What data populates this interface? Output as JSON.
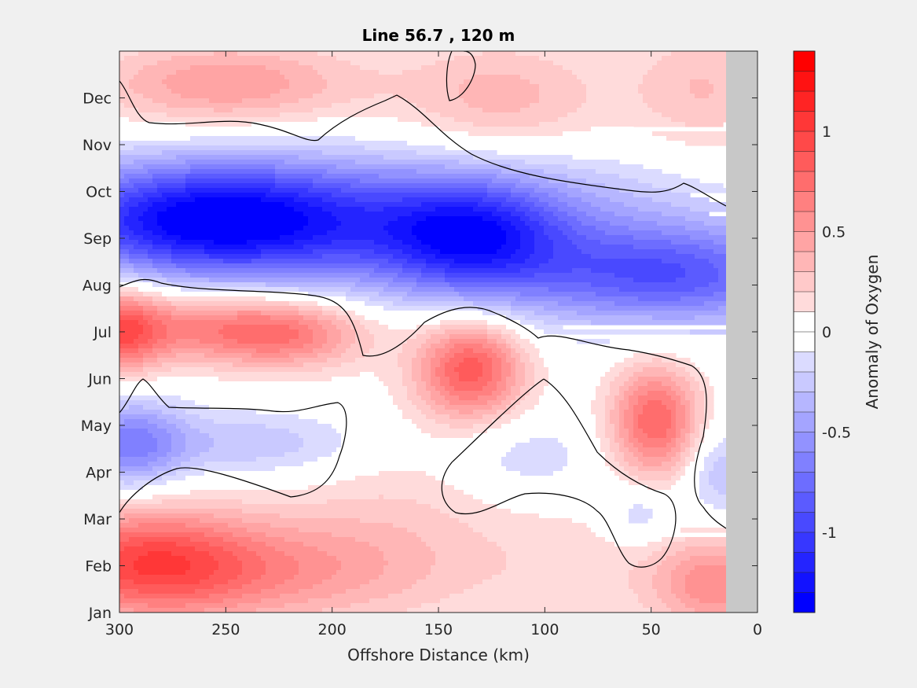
{
  "chart_data": {
    "type": "heatmap",
    "subtype": "filled-contour",
    "title": "Line 56.7 , 120 m",
    "xlabel": "Offshore Distance (km)",
    "ylabel": "",
    "x_axis_reversed": true,
    "xlim": [
      300,
      0
    ],
    "x_ticks": [
      300,
      250,
      200,
      150,
      100,
      50,
      0
    ],
    "y_ticks": [
      "Jan",
      "Feb",
      "Mar",
      "Apr",
      "May",
      "Jun",
      "Jul",
      "Aug",
      "Sep",
      "Oct",
      "Nov",
      "Dec"
    ],
    "y_range_months": [
      1,
      13
    ],
    "colorbar": {
      "label": "Anomaly of Oxygen",
      "range": [
        -1.4,
        1.4
      ],
      "levels": 28,
      "step": 0.1,
      "ticks": [
        1,
        0.5,
        0,
        -0.5,
        -1
      ],
      "tick_labels": [
        "1",
        "0.5",
        "0",
        "-0.5",
        "-1"
      ],
      "low_color": "#0000ff",
      "mid_color": "#ffffff",
      "high_color": "#ff0000"
    },
    "no_data_region": {
      "x_from_km": 15,
      "x_to_km": 0,
      "color": "#c8c8c8"
    },
    "zero_contour_color": "#000000",
    "features": [
      {
        "name": "strong negative anomaly",
        "x_km": 258,
        "month": "Sep-Oct",
        "value": -1.3
      },
      {
        "name": "negative anomaly",
        "x_km": 135,
        "month": "Sep",
        "value": -0.8
      },
      {
        "name": "negative anomaly",
        "x_km": 42,
        "month": "Aug",
        "value": -0.8
      },
      {
        "name": "positive anomaly",
        "x_km": 135,
        "month": "Jun",
        "value": 0.75
      },
      {
        "name": "positive anomaly",
        "x_km": 48,
        "month": "May",
        "value": 0.75
      },
      {
        "name": "positive anomaly",
        "x_km": 260,
        "month": "Jul",
        "value": 0.6
      },
      {
        "name": "positive anomaly",
        "x_km": 295,
        "month": "Feb",
        "value": 0.7
      },
      {
        "name": "positive anomaly",
        "x_km": 250,
        "month": "Dec",
        "value": 0.45
      }
    ]
  }
}
